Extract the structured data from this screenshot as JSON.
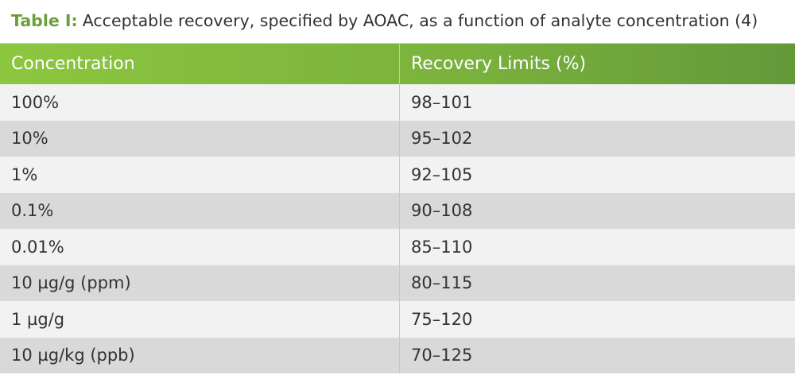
{
  "title": {
    "label": "Table I:",
    "text": "Acceptable recovery, specified by AOAC, as a function of analyte concentration (4)"
  },
  "table": {
    "header": [
      "Concentration",
      "Recovery Limits (%)"
    ],
    "rows": [
      [
        "100%",
        "98–101"
      ],
      [
        "10%",
        "95–102"
      ],
      [
        "1%",
        "92–105"
      ],
      [
        "0.1%",
        "90–108"
      ],
      [
        "0.01%",
        "85–110"
      ],
      [
        "10 µg/g (ppm)",
        "80–115"
      ],
      [
        "1 µg/g",
        "75–120"
      ],
      [
        "10 µg/kg (ppb)",
        "70–125"
      ]
    ]
  }
}
